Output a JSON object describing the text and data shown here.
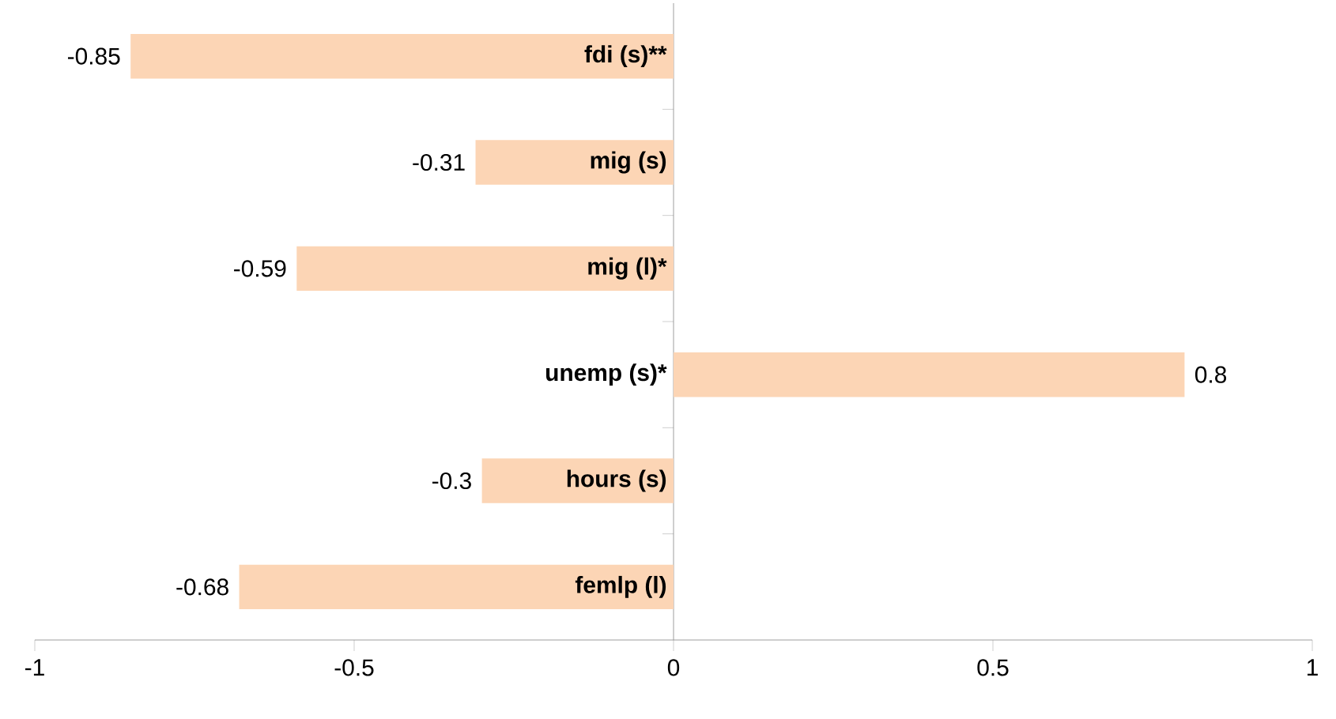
{
  "chart_data": {
    "type": "bar",
    "orientation": "horizontal",
    "categories": [
      "fdi (s)**",
      "mig (s)",
      "mig (l)*",
      "unemp (s)*",
      "hours (s)",
      "femlp (l)"
    ],
    "values": [
      -0.85,
      -0.31,
      -0.59,
      0.8,
      -0.3,
      -0.68
    ],
    "color": "#fcd5b5",
    "xlim": [
      -1,
      1
    ],
    "xticks": [
      -1,
      -0.5,
      0,
      0.5,
      1
    ],
    "data_labels": true
  }
}
